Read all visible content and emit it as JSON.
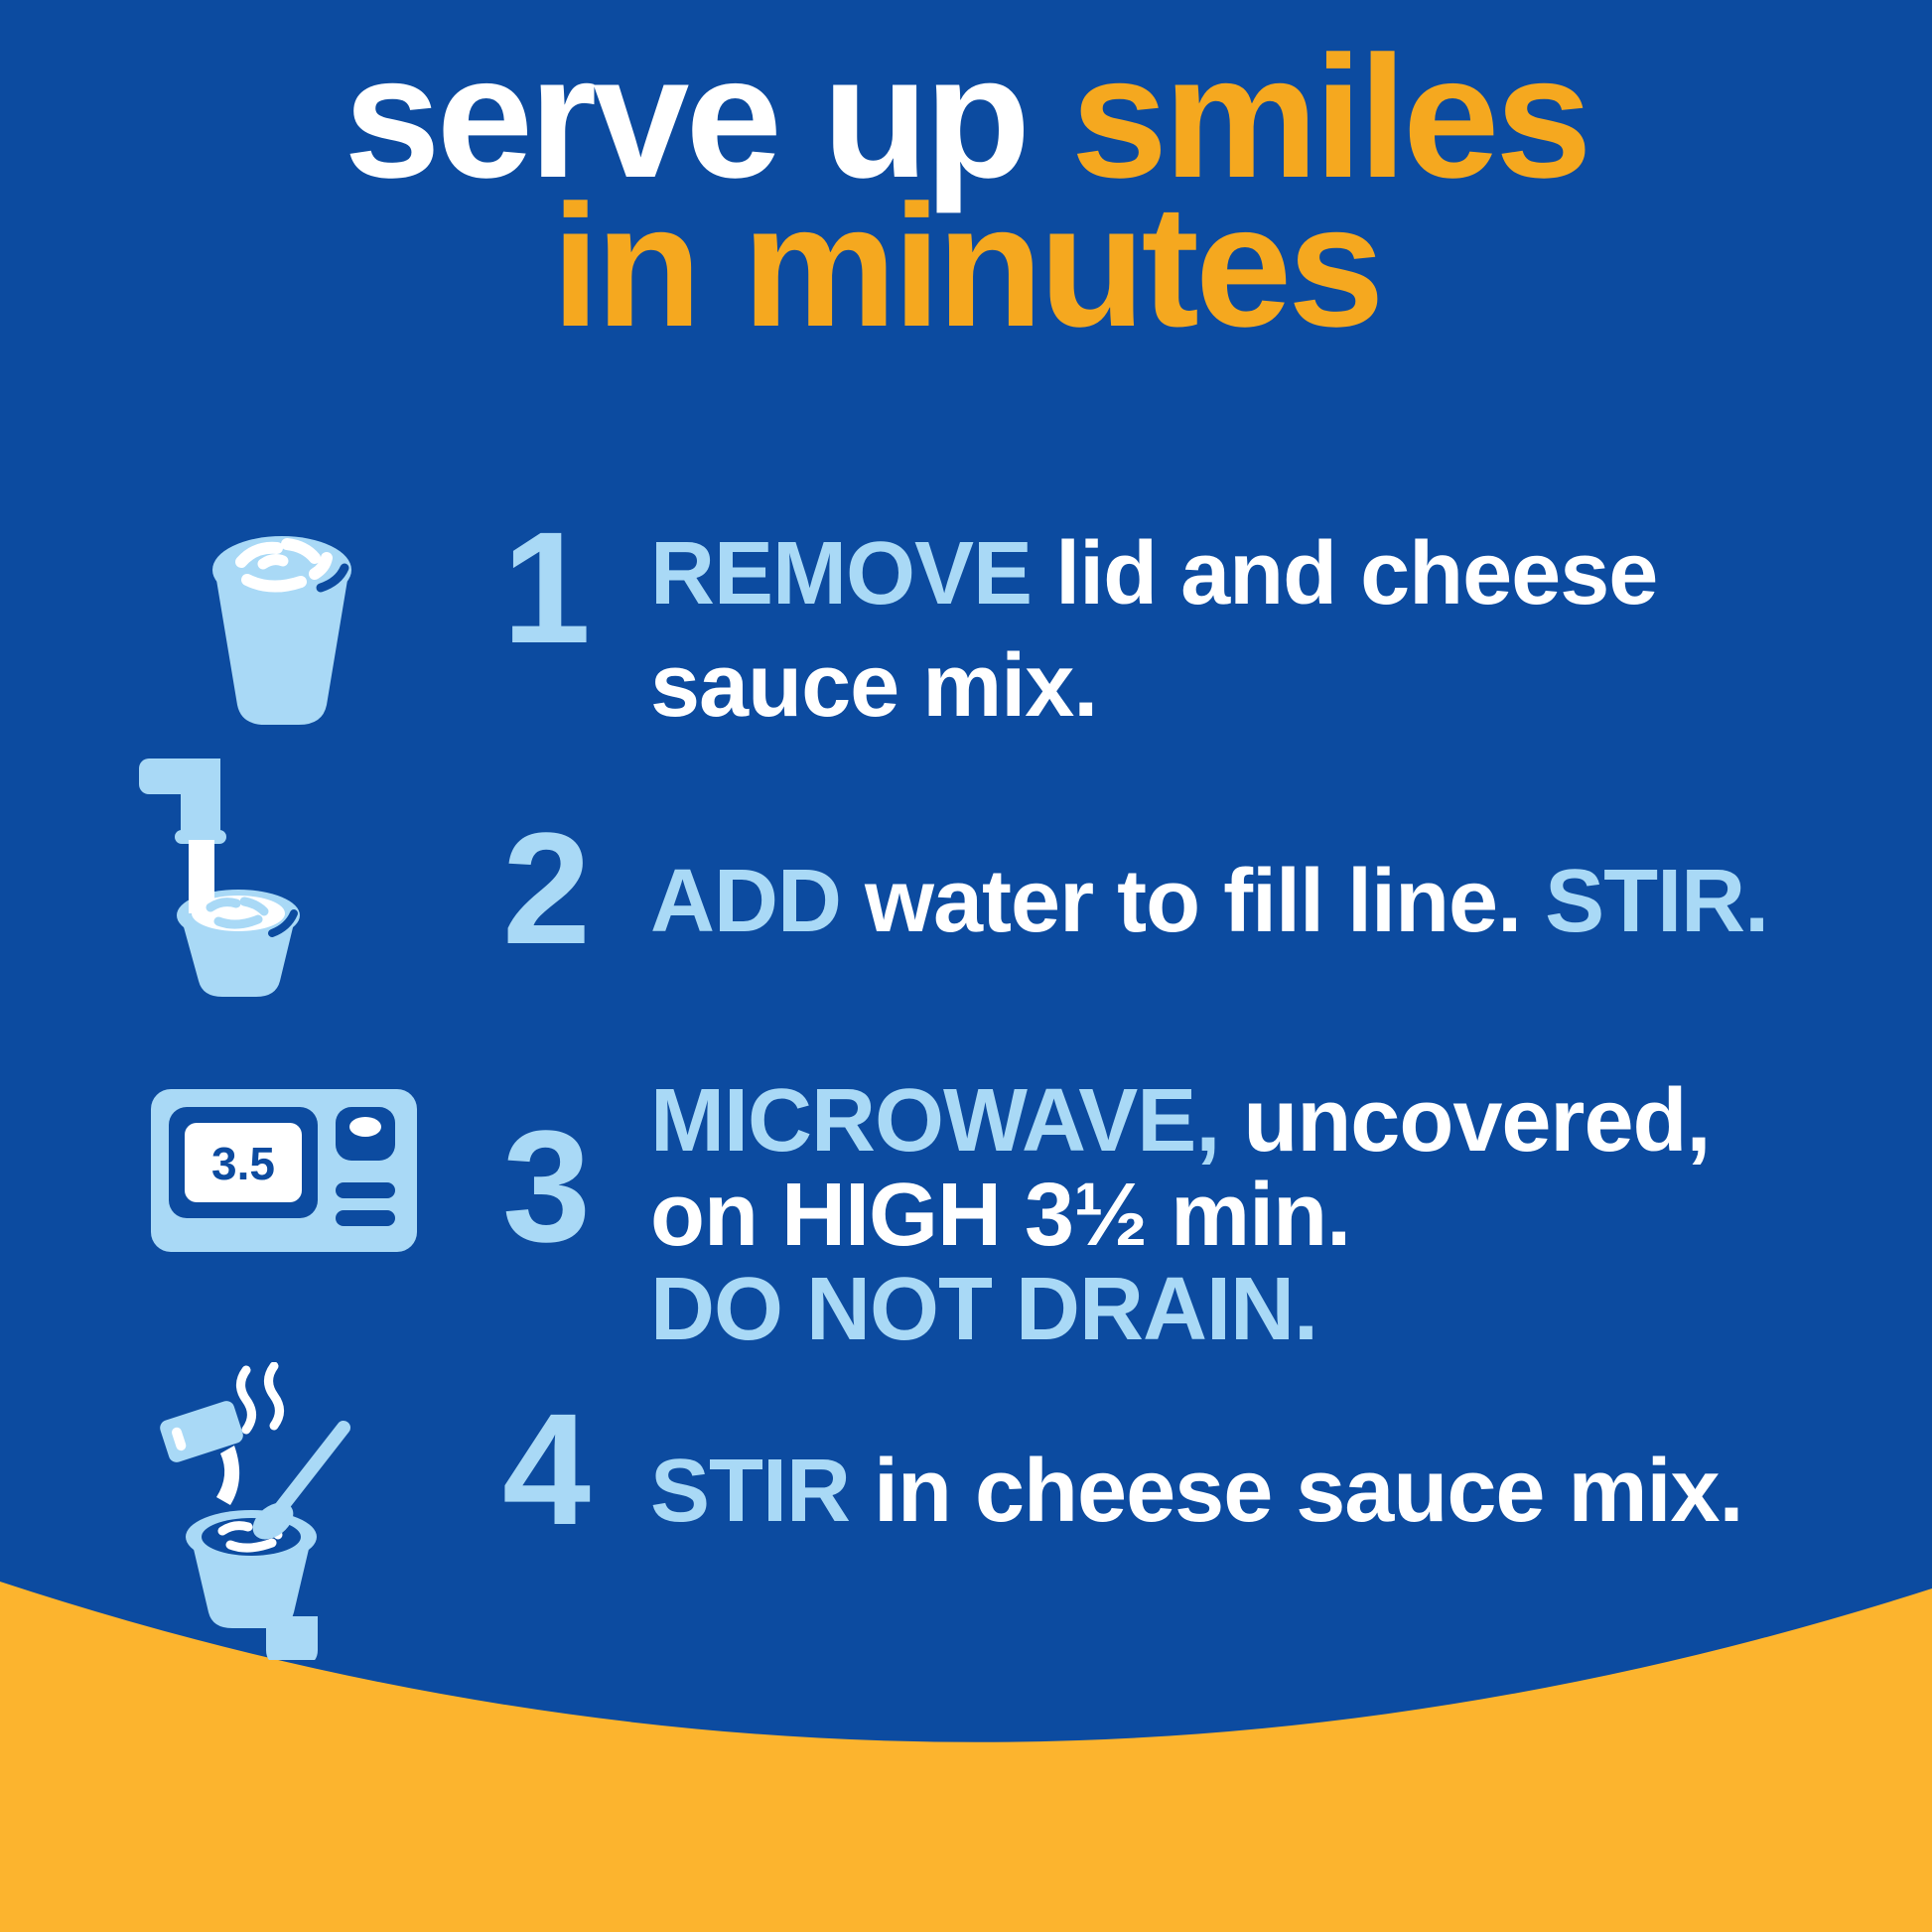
{
  "colors": {
    "background": "#0C4BA0",
    "accent": "#A9D9F6",
    "white": "#FFFFFF",
    "title-orange": "#F5A81F",
    "band-yellow": "#FCB42E"
  },
  "title": {
    "line1": [
      {
        "text": "serve up ",
        "style": "white"
      },
      {
        "text": "smiles",
        "style": "orange"
      }
    ],
    "line2": [
      {
        "text": "in minutes",
        "style": "orange"
      }
    ]
  },
  "steps": [
    {
      "number": "1",
      "icon": "mac-cup-icon",
      "lines": [
        [
          {
            "text": "REMOVE ",
            "style": "accent"
          },
          {
            "text": "lid and cheese",
            "style": "white"
          }
        ],
        [
          {
            "text": "sauce mix.",
            "style": "white"
          }
        ]
      ]
    },
    {
      "number": "2",
      "icon": "faucet-fill-cup-icon",
      "lines": [
        [
          {
            "text": "ADD ",
            "style": "accent"
          },
          {
            "text": "water to fill line. ",
            "style": "white"
          },
          {
            "text": "STIR.",
            "style": "accent"
          }
        ]
      ]
    },
    {
      "number": "3",
      "icon": "microwave-icon",
      "icon_display": "3.5",
      "lines": [
        [
          {
            "text": "MICROWAVE, ",
            "style": "accent"
          },
          {
            "text": "uncovered,",
            "style": "white"
          }
        ],
        [
          {
            "text": "on HIGH 3½ min.",
            "style": "white"
          }
        ],
        [
          {
            "text": "DO NOT DRAIN.",
            "style": "accent"
          }
        ]
      ]
    },
    {
      "number": "4",
      "icon": "stir-packet-spoon-cup-icon",
      "lines": [
        [
          {
            "text": "STIR ",
            "style": "accent"
          },
          {
            "text": "in cheese sauce mix.",
            "style": "white"
          }
        ]
      ]
    }
  ]
}
